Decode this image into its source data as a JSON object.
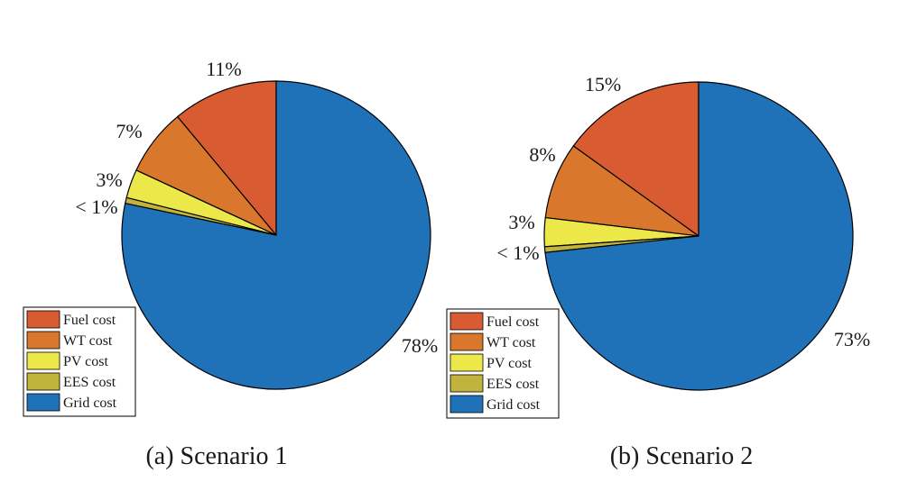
{
  "colors": {
    "fuel": "#D95B31",
    "wt": "#D9772C",
    "pv": "#EDE84A",
    "ees": "#C1B33E",
    "grid": "#1F72B8"
  },
  "chart_data": [
    {
      "type": "pie",
      "caption": "(a) Scenario 1",
      "slices": [
        {
          "name": "Fuel cost",
          "value": 11,
          "label": "11%",
          "color_key": "fuel"
        },
        {
          "name": "WT cost",
          "value": 7,
          "label": "7%",
          "color_key": "wt"
        },
        {
          "name": "PV cost",
          "value": 3,
          "label": "3%",
          "color_key": "pv"
        },
        {
          "name": "EES cost",
          "value": 0.6,
          "label": "< 1%",
          "color_key": "ees"
        },
        {
          "name": "Grid cost",
          "value": 78,
          "label": "78%",
          "color_key": "grid"
        }
      ],
      "legend": [
        "Fuel cost",
        "WT cost",
        "PV cost",
        "EES cost",
        "Grid cost"
      ],
      "legend_position": "bottom-left"
    },
    {
      "type": "pie",
      "caption": "(b) Scenario 2",
      "slices": [
        {
          "name": "Fuel cost",
          "value": 15,
          "label": "15%",
          "color_key": "fuel"
        },
        {
          "name": "WT cost",
          "value": 8,
          "label": "8%",
          "color_key": "wt"
        },
        {
          "name": "PV cost",
          "value": 3,
          "label": "3%",
          "color_key": "pv"
        },
        {
          "name": "EES cost",
          "value": 0.6,
          "label": "< 1%",
          "color_key": "ees"
        },
        {
          "name": "Grid cost",
          "value": 73,
          "label": "73%",
          "color_key": "grid"
        }
      ],
      "legend": [
        "Fuel cost",
        "WT cost",
        "PV cost",
        "EES cost",
        "Grid cost"
      ],
      "legend_position": "bottom-left"
    }
  ]
}
